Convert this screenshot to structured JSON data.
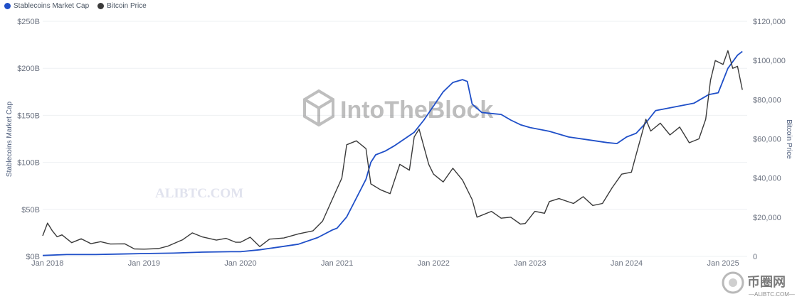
{
  "legend": [
    {
      "name": "Stablecoins Market Cap",
      "color": "#1f4fc8"
    },
    {
      "name": "Bitcoin Price",
      "color": "#3a3a3a"
    }
  ],
  "watermarks": {
    "brand": "IntoTheBlock",
    "site1": "ALIBTC.COM",
    "site2_cn": "币圈网",
    "site2_url": "—ALIBTC.COM—"
  },
  "chart_data": {
    "type": "line",
    "x_ticks": [
      "Jan 2018",
      "Jan 2019",
      "Jan 2020",
      "Jan 2021",
      "Jan 2022",
      "Jan 2023",
      "Jan 2024",
      "Jan 2025"
    ],
    "y_left": {
      "label": "Stablecoins Market Cap",
      "ticks": [
        "$0B",
        "$50B",
        "$100B",
        "$150B",
        "$200B",
        "$250B"
      ],
      "range": [
        0,
        250
      ]
    },
    "y_right": {
      "label": "Bitcoin Price",
      "ticks": [
        "0",
        "$20,000",
        "$40,000",
        "$60,000",
        "$80,000",
        "$100,000",
        "$120,000"
      ],
      "range": [
        0,
        120000
      ]
    },
    "x_range": [
      2017.95,
      2025.25
    ],
    "series": [
      {
        "name": "Stablecoins Market Cap",
        "color": "#1f4fc8",
        "axis": "left",
        "unit": "B USD",
        "points": [
          [
            2017.95,
            1
          ],
          [
            2018.2,
            2
          ],
          [
            2018.5,
            2
          ],
          [
            2018.75,
            2.5
          ],
          [
            2019.0,
            3
          ],
          [
            2019.3,
            3.5
          ],
          [
            2019.6,
            4.5
          ],
          [
            2019.9,
            5
          ],
          [
            2020.0,
            5
          ],
          [
            2020.2,
            7
          ],
          [
            2020.4,
            10
          ],
          [
            2020.6,
            13
          ],
          [
            2020.8,
            20
          ],
          [
            2020.95,
            28
          ],
          [
            2021.0,
            30
          ],
          [
            2021.1,
            42
          ],
          [
            2021.2,
            62
          ],
          [
            2021.3,
            82
          ],
          [
            2021.35,
            100
          ],
          [
            2021.4,
            108
          ],
          [
            2021.5,
            112
          ],
          [
            2021.6,
            118
          ],
          [
            2021.7,
            125
          ],
          [
            2021.8,
            132
          ],
          [
            2021.9,
            145
          ],
          [
            2022.0,
            160
          ],
          [
            2022.1,
            175
          ],
          [
            2022.2,
            185
          ],
          [
            2022.3,
            188
          ],
          [
            2022.35,
            186
          ],
          [
            2022.4,
            162
          ],
          [
            2022.5,
            153
          ],
          [
            2022.6,
            152
          ],
          [
            2022.7,
            151
          ],
          [
            2022.8,
            145
          ],
          [
            2022.9,
            140
          ],
          [
            2023.0,
            137
          ],
          [
            2023.2,
            133
          ],
          [
            2023.4,
            127
          ],
          [
            2023.6,
            124
          ],
          [
            2023.8,
            121
          ],
          [
            2023.9,
            120
          ],
          [
            2024.0,
            127
          ],
          [
            2024.1,
            131
          ],
          [
            2024.2,
            142
          ],
          [
            2024.3,
            155
          ],
          [
            2024.5,
            159
          ],
          [
            2024.7,
            163
          ],
          [
            2024.85,
            172
          ],
          [
            2024.95,
            174
          ],
          [
            2025.05,
            200
          ],
          [
            2025.15,
            214
          ],
          [
            2025.2,
            218
          ]
        ]
      },
      {
        "name": "Bitcoin Price",
        "color": "#3a3a3a",
        "axis": "right",
        "unit": "USD",
        "points": [
          [
            2017.95,
            10500
          ],
          [
            2018.0,
            17000
          ],
          [
            2018.05,
            13000
          ],
          [
            2018.1,
            10000
          ],
          [
            2018.15,
            11000
          ],
          [
            2018.25,
            7000
          ],
          [
            2018.35,
            9000
          ],
          [
            2018.45,
            6500
          ],
          [
            2018.55,
            7500
          ],
          [
            2018.65,
            6300
          ],
          [
            2018.8,
            6400
          ],
          [
            2018.9,
            3800
          ],
          [
            2019.0,
            3700
          ],
          [
            2019.15,
            4000
          ],
          [
            2019.25,
            5300
          ],
          [
            2019.4,
            8500
          ],
          [
            2019.5,
            12000
          ],
          [
            2019.6,
            10000
          ],
          [
            2019.75,
            8300
          ],
          [
            2019.85,
            9200
          ],
          [
            2019.95,
            7200
          ],
          [
            2020.0,
            7200
          ],
          [
            2020.1,
            9800
          ],
          [
            2020.2,
            5000
          ],
          [
            2020.3,
            8800
          ],
          [
            2020.45,
            9400
          ],
          [
            2020.6,
            11500
          ],
          [
            2020.75,
            13000
          ],
          [
            2020.85,
            18000
          ],
          [
            2020.95,
            29000
          ],
          [
            2021.05,
            40000
          ],
          [
            2021.1,
            57000
          ],
          [
            2021.2,
            59000
          ],
          [
            2021.3,
            55000
          ],
          [
            2021.35,
            37000
          ],
          [
            2021.45,
            34000
          ],
          [
            2021.55,
            32000
          ],
          [
            2021.65,
            47000
          ],
          [
            2021.75,
            44000
          ],
          [
            2021.8,
            61000
          ],
          [
            2021.85,
            65000
          ],
          [
            2021.95,
            47000
          ],
          [
            2022.0,
            42000
          ],
          [
            2022.1,
            38000
          ],
          [
            2022.2,
            45000
          ],
          [
            2022.3,
            39000
          ],
          [
            2022.4,
            29000
          ],
          [
            2022.45,
            20000
          ],
          [
            2022.6,
            23000
          ],
          [
            2022.7,
            19500
          ],
          [
            2022.8,
            20000
          ],
          [
            2022.9,
            16500
          ],
          [
            2022.95,
            16800
          ],
          [
            2023.05,
            23000
          ],
          [
            2023.15,
            22000
          ],
          [
            2023.2,
            28000
          ],
          [
            2023.3,
            29500
          ],
          [
            2023.45,
            27000
          ],
          [
            2023.55,
            30500
          ],
          [
            2023.65,
            26000
          ],
          [
            2023.75,
            27000
          ],
          [
            2023.85,
            35000
          ],
          [
            2023.95,
            42000
          ],
          [
            2024.05,
            43000
          ],
          [
            2024.1,
            52000
          ],
          [
            2024.2,
            70000
          ],
          [
            2024.25,
            64000
          ],
          [
            2024.35,
            68000
          ],
          [
            2024.45,
            62000
          ],
          [
            2024.55,
            66000
          ],
          [
            2024.65,
            58000
          ],
          [
            2024.75,
            60000
          ],
          [
            2024.82,
            70000
          ],
          [
            2024.87,
            90000
          ],
          [
            2024.92,
            100000
          ],
          [
            2025.0,
            98000
          ],
          [
            2025.05,
            105000
          ],
          [
            2025.1,
            96000
          ],
          [
            2025.15,
            97000
          ],
          [
            2025.2,
            85000
          ]
        ]
      }
    ]
  }
}
